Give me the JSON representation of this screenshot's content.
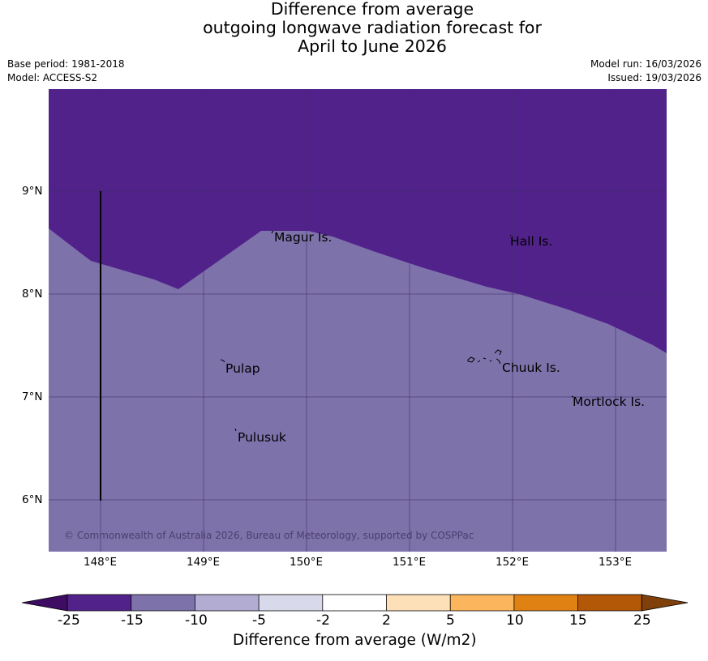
{
  "title": {
    "line1": "Difference from average",
    "line2": "outgoing longwave radiation forecast for",
    "line3": "April to June 2026"
  },
  "meta": {
    "base_period": "Base period: 1981-2018",
    "model": "Model: ACCESS-S2",
    "model_run": "Model run: 16/03/2026",
    "issued": "Issued: 19/03/2026"
  },
  "map": {
    "lat_ticks": [
      "9°N",
      "8°N",
      "7°N",
      "6°N"
    ],
    "lon_ticks": [
      "148°E",
      "149°E",
      "150°E",
      "151°E",
      "152°E",
      "153°E"
    ],
    "places": {
      "magur": "Magur Is.",
      "hall": "Hall Is.",
      "pulap": "Pulap",
      "chuuk": "Chuuk Is.",
      "mortlock": "Mortlock Is.",
      "pulusuk": "Pulusuk"
    },
    "copyright": "© Commonwealth of Australia 2026, Bureau of Meteorology, supported by COSPPac",
    "colors": {
      "band_lt_minus15": "#52228b",
      "band_minus15_to_minus10": "#7e72ab",
      "gridline": "#3a2a6a"
    }
  },
  "colorbar": {
    "labels": [
      "-25",
      "-15",
      "-10",
      "-5",
      "-2",
      "2",
      "5",
      "10",
      "15",
      "25"
    ],
    "colors": [
      "#3f0c63",
      "#52228b",
      "#7e72ab",
      "#b2abd2",
      "#d8d9ea",
      "#ffffff",
      "#fde0b7",
      "#fbb55c",
      "#e08213",
      "#b35806",
      "#80400a"
    ],
    "title": "Difference from average (W/m2)"
  }
}
